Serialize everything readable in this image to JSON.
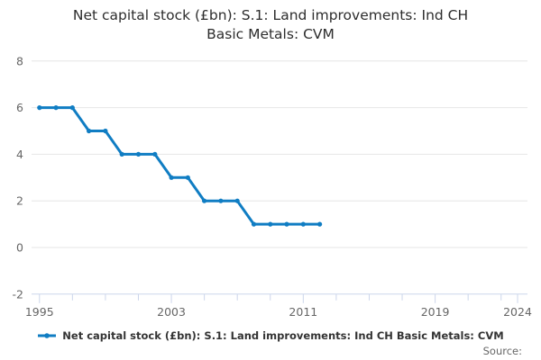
{
  "title": {
    "line1": "Net capital stock (£bn): S.1: Land improvements: Ind CH",
    "line2": "Basic Metals: CVM"
  },
  "legend": {
    "label": "Net capital stock (£bn): S.1: Land improvements: Ind CH Basic Metals: CVM"
  },
  "source": {
    "label": "Source:"
  },
  "colors": {
    "line": "#107dc3",
    "grid": "#e6e6e6",
    "axis": "#ccd6eb",
    "tick_label": "#666666",
    "title_text": "#2d2d2d",
    "legend_text": "#333333"
  },
  "chart_data": {
    "type": "line",
    "title": "Net capital stock (£bn): S.1: Land improvements: Ind CH Basic Metals: CVM",
    "x": [
      1995,
      1996,
      1997,
      1998,
      1999,
      2000,
      2001,
      2002,
      2003,
      2004,
      2005,
      2006,
      2007,
      2008,
      2009,
      2010,
      2011,
      2012
    ],
    "values": [
      6,
      6,
      6,
      5,
      5,
      4,
      4,
      4,
      3,
      3,
      2,
      2,
      2,
      1,
      1,
      1,
      1,
      1
    ],
    "xlabel": "",
    "ylabel": "",
    "ylim": [
      -2,
      8
    ],
    "xlim": [
      1994.52,
      2024.6
    ],
    "yticks": [
      8,
      6,
      4,
      2,
      0,
      -2
    ],
    "ytick_labels": [
      "8",
      "6",
      "4",
      "2",
      "0",
      "-2"
    ],
    "xticks_major": [
      1995,
      2003,
      2011,
      2019,
      2024
    ],
    "xtick_major_labels": [
      "1995",
      "2003",
      "2011",
      "2019",
      "2024"
    ],
    "xticks_minor": [
      1997,
      1999,
      2001,
      2005,
      2007,
      2009,
      2013,
      2015,
      2017,
      2021,
      2023
    ],
    "grid": "horizontal",
    "legend_position": "bottom",
    "marker": "circle"
  }
}
